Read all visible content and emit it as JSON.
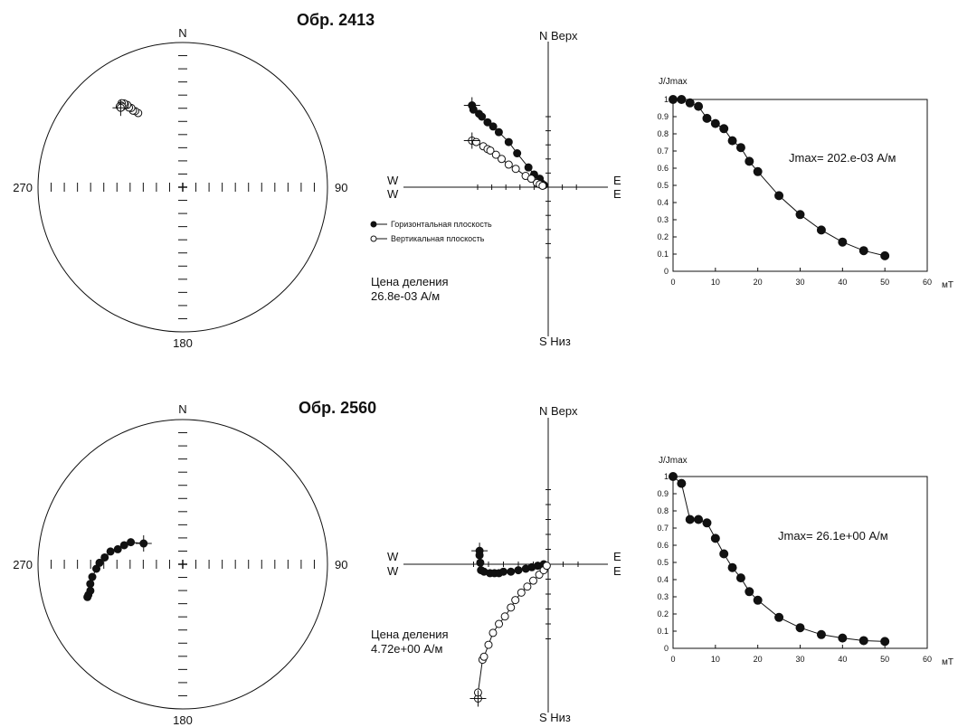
{
  "chart_data": [
    {
      "type": "scatter",
      "kind": "stereonet",
      "sample_title": "Обр. 2413",
      "labels": {
        "n": "N",
        "e": "90",
        "s": "180",
        "w": "270"
      },
      "points_dec_inc": [
        [
          329,
          40
        ],
        [
          328,
          38
        ],
        [
          327,
          37
        ],
        [
          327,
          35
        ],
        [
          326,
          34
        ],
        [
          326,
          32
        ],
        [
          325,
          31
        ],
        [
          325,
          30
        ],
        [
          324,
          29
        ],
        [
          323,
          30
        ],
        [
          322,
          30
        ],
        [
          323,
          31
        ],
        [
          322,
          31
        ]
      ],
      "start_index": 12,
      "fill": "open"
    },
    {
      "type": "line",
      "kind": "zijderveld",
      "labels": {
        "n": "N Верх",
        "s": "S Низ",
        "w_top": "W",
        "w_bot": "W",
        "e_top": "E",
        "e_bot": "E"
      },
      "scale_label": "Цена деления",
      "scale_value": "26.8e-03  А/м",
      "legend": [
        "Горизонтальная плоскость",
        "Вертикальная плоскость"
      ],
      "series": [
        {
          "name": "Горизонтальная плоскость",
          "fill": "filled",
          "points": [
            [
              -5.4,
              5.8
            ],
            [
              -5.3,
              5.5
            ],
            [
              -4.9,
              5.2
            ],
            [
              -4.7,
              5.0
            ],
            [
              -4.3,
              4.6
            ],
            [
              -3.9,
              4.3
            ],
            [
              -3.5,
              3.9
            ],
            [
              -2.8,
              3.2
            ],
            [
              -2.2,
              2.4
            ],
            [
              -1.4,
              1.4
            ],
            [
              -1.0,
              0.9
            ],
            [
              -0.6,
              0.6
            ],
            [
              -0.5,
              0.3
            ],
            [
              -0.3,
              0.15
            ]
          ]
        },
        {
          "name": "Вертикальная плоскость",
          "fill": "open",
          "points": [
            [
              -5.4,
              3.3
            ],
            [
              -5.1,
              3.2
            ],
            [
              -4.6,
              2.9
            ],
            [
              -4.3,
              2.7
            ],
            [
              -4.1,
              2.6
            ],
            [
              -3.7,
              2.3
            ],
            [
              -3.3,
              2.0
            ],
            [
              -2.8,
              1.6
            ],
            [
              -2.3,
              1.3
            ],
            [
              -1.6,
              0.8
            ],
            [
              -1.2,
              0.6
            ],
            [
              -0.8,
              0.3
            ],
            [
              -0.6,
              0.2
            ],
            [
              -0.4,
              0.1
            ]
          ]
        }
      ],
      "start_index": 0
    },
    {
      "type": "line",
      "kind": "demagnetization",
      "ylabel": "J/Jmax",
      "xlabel": "мТ",
      "annotation": "Jmax= 202.e-03  А/м",
      "xlim": [
        0,
        60
      ],
      "ylim": [
        0,
        1
      ],
      "xticks": [
        0,
        10,
        20,
        30,
        40,
        50,
        60
      ],
      "yticks": [
        "0",
        "0.1",
        "0.2",
        "0.3",
        "0.4",
        "0.5",
        "0.6",
        "0.7",
        "0.8",
        "0.9",
        "1"
      ],
      "x": [
        0,
        2,
        4,
        6,
        8,
        10,
        12,
        14,
        16,
        18,
        20,
        25,
        30,
        35,
        40,
        45,
        50
      ],
      "y": [
        1.0,
        1.0,
        0.98,
        0.96,
        0.89,
        0.86,
        0.83,
        0.76,
        0.72,
        0.64,
        0.58,
        0.44,
        0.33,
        0.24,
        0.17,
        0.12,
        0.09
      ]
    },
    {
      "type": "scatter",
      "kind": "stereonet",
      "sample_title": "Обр. 2560",
      "labels": {
        "n": "N",
        "e": "90",
        "s": "180",
        "w": "270"
      },
      "points_dec_inc": [
        [
          298,
          65
        ],
        [
          293,
          58
        ],
        [
          288,
          55
        ],
        [
          283,
          52
        ],
        [
          280,
          48
        ],
        [
          275,
          45
        ],
        [
          271,
          42
        ],
        [
          267,
          40
        ],
        [
          262,
          37
        ],
        [
          258,
          35
        ],
        [
          254,
          34
        ],
        [
          252,
          32
        ],
        [
          251,
          31
        ]
      ],
      "start_index": 0,
      "fill": "filled"
    },
    {
      "type": "line",
      "kind": "zijderveld",
      "labels": {
        "n": "N Верх",
        "s": "S Низ",
        "w_top": "W",
        "w_bot": "W",
        "e_top": "E",
        "e_bot": "E"
      },
      "scale_label": "Цена деления",
      "scale_value": "4.72e+00  А/м",
      "series": [
        {
          "name": "Горизонтальная плоскость",
          "fill": "filled",
          "points": [
            [
              -4.6,
              0.9
            ],
            [
              -4.6,
              0.6
            ],
            [
              -4.55,
              0.1
            ],
            [
              -4.5,
              -0.4
            ],
            [
              -4.3,
              -0.5
            ],
            [
              -3.9,
              -0.6
            ],
            [
              -3.6,
              -0.6
            ],
            [
              -3.3,
              -0.6
            ],
            [
              -3.0,
              -0.5
            ],
            [
              -2.5,
              -0.5
            ],
            [
              -2.0,
              -0.4
            ],
            [
              -1.5,
              -0.3
            ],
            [
              -1.1,
              -0.2
            ],
            [
              -0.7,
              -0.1
            ],
            [
              -0.3,
              0.0
            ]
          ]
        },
        {
          "name": "Вертикальная плоскость",
          "fill": "open",
          "points": [
            [
              -4.7,
              -9.0
            ],
            [
              -4.7,
              -8.6
            ],
            [
              -4.4,
              -6.4
            ],
            [
              -4.3,
              -6.2
            ],
            [
              -4.0,
              -5.4
            ],
            [
              -3.7,
              -4.6
            ],
            [
              -3.3,
              -4.0
            ],
            [
              -2.9,
              -3.5
            ],
            [
              -2.5,
              -2.9
            ],
            [
              -2.2,
              -2.4
            ],
            [
              -1.8,
              -1.9
            ],
            [
              -1.4,
              -1.5
            ],
            [
              -1.0,
              -1.1
            ],
            [
              -0.6,
              -0.7
            ],
            [
              -0.3,
              -0.4
            ],
            [
              -0.1,
              -0.1
            ]
          ]
        }
      ],
      "start_index": 0
    },
    {
      "type": "line",
      "kind": "demagnetization",
      "ylabel": "J/Jmax",
      "xlabel": "мТ",
      "annotation": "Jmax= 26.1e+00  А/м",
      "xlim": [
        0,
        60
      ],
      "ylim": [
        0,
        1
      ],
      "xticks": [
        0,
        10,
        20,
        30,
        40,
        50,
        60
      ],
      "yticks": [
        "0",
        "0.1",
        "0.2",
        "0.3",
        "0.4",
        "0.5",
        "0.6",
        "0.7",
        "0.8",
        "0.9",
        "1"
      ],
      "x": [
        0,
        2,
        4,
        6,
        8,
        10,
        12,
        14,
        16,
        18,
        20,
        25,
        30,
        35,
        40,
        45,
        50
      ],
      "y": [
        1.0,
        0.96,
        0.75,
        0.75,
        0.73,
        0.64,
        0.55,
        0.47,
        0.41,
        0.33,
        0.28,
        0.18,
        0.12,
        0.08,
        0.06,
        0.045,
        0.04
      ]
    }
  ]
}
